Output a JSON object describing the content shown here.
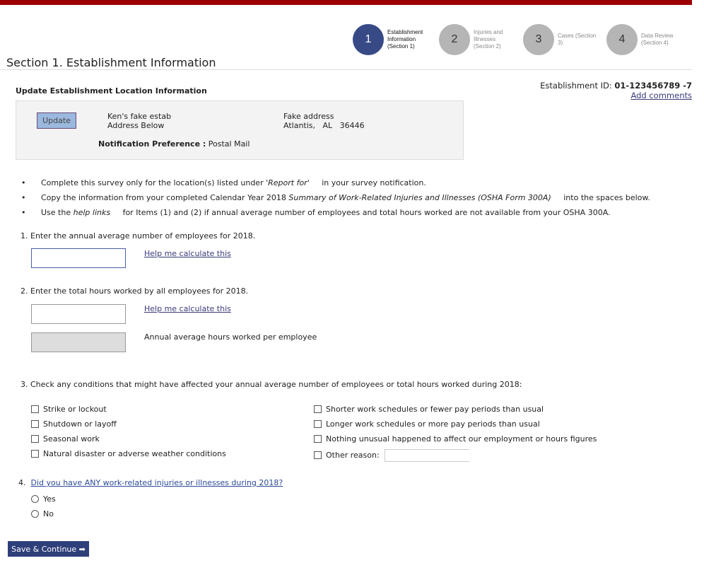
{
  "steps": [
    {
      "num": "1",
      "label": "Establishment Information (Section 1)",
      "active": true
    },
    {
      "num": "2",
      "label": "Injuries and Illnesses (Section 2)",
      "active": false
    },
    {
      "num": "3",
      "label": "Cases (Section 3)",
      "active": false
    },
    {
      "num": "4",
      "label": "Data Review (Section 4)",
      "active": false
    }
  ],
  "page_title": "Section 1. Establishment Information",
  "establishment": {
    "id_label": "Establishment ID:",
    "id_value": "01-123456789 -7",
    "add_comments": "Add comments"
  },
  "location": {
    "heading": "Update Establishment Location Information",
    "update_button": "Update",
    "name": "Ken's fake estab",
    "name_line2": "Address Below",
    "address": "Fake address",
    "city_line": "Atlantis,   AL   36446",
    "notif_label": "Notification Preference :",
    "notif_value": "Postal Mail"
  },
  "instructions": [
    {
      "pre": "Complete this survey only for the location(s) listed under ",
      "em": "'Report for'",
      "post": " in your survey notification."
    },
    {
      "pre": "Copy the information from your completed Calendar Year 2018 ",
      "em": "Summary of Work-Related Injuries and Illnesses (OSHA Form 300A)",
      "post": " into the spaces below."
    },
    {
      "pre": "Use the ",
      "em": "help links",
      "post": " for Items (1) and (2) if annual average number of employees and total hours worked are not available from your OSHA 300A."
    }
  ],
  "q1": {
    "label": "1.  Enter the annual average number of employees for 2018.",
    "value": "",
    "help": "Help me calculate this"
  },
  "q2": {
    "label": "2.  Enter the total hours worked by all employees for 2018.",
    "value": "",
    "help": "Help me calculate this",
    "avg_label": "Annual average hours worked per employee"
  },
  "q3": {
    "label": "3.  Check any conditions that might have affected your annual average number of employees or total hours worked during 2018:",
    "left": [
      "Strike or lockout",
      "Shutdown or layoff",
      "Seasonal work",
      "Natural disaster or adverse weather conditions"
    ],
    "right": [
      "Shorter work schedules or fewer pay periods than usual",
      "Longer work schedules or more pay periods than usual",
      "Nothing unusual happened to affect our employment or hours figures",
      "Other reason:"
    ]
  },
  "q4": {
    "num": "4.",
    "label": "Did you have ANY work-related injuries or illnesses during 2018?",
    "options": [
      "Yes",
      "No"
    ]
  },
  "save_button": "Save & Continue ➡"
}
